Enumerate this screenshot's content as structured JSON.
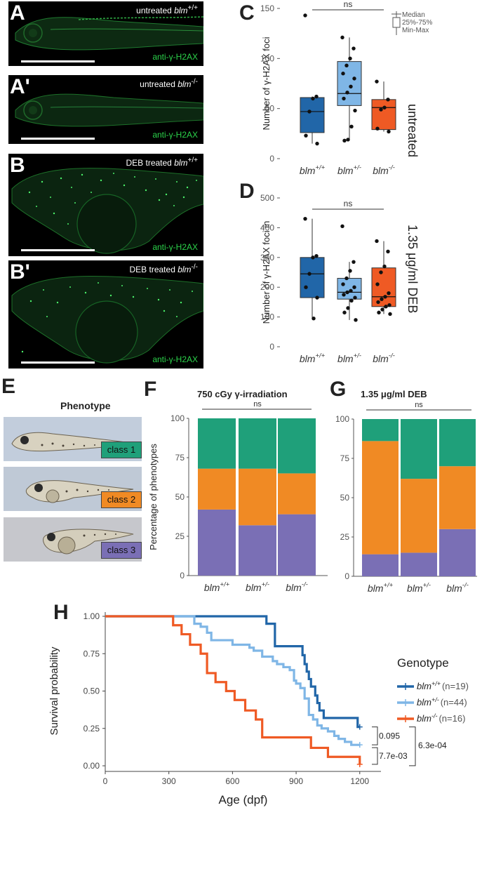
{
  "panels": {
    "a": {
      "letter": "A",
      "label": "untreated ",
      "genotype": "blm",
      "sup": "+/+",
      "antibody": "anti-γ-H2AX"
    },
    "a2": {
      "letter": "A'",
      "label": "untreated ",
      "genotype": "blm",
      "sup": "-/-",
      "antibody": "anti-γ-H2AX"
    },
    "b": {
      "letter": "B",
      "label": "DEB treated ",
      "genotype": "blm",
      "sup": "+/+",
      "antibody": "anti-γ-H2AX"
    },
    "b2": {
      "letter": "B'",
      "label": "DEB treated ",
      "genotype": "blm",
      "sup": "-/-",
      "antibody": "anti-γ-H2AX"
    },
    "c": {
      "letter": "C",
      "side_label": "untreated"
    },
    "d": {
      "letter": "D",
      "side_label": "1.35 μg/ml DEB"
    },
    "e": {
      "letter": "E",
      "title": "Phenotype",
      "classes": [
        "class 1",
        "class 2",
        "class 3"
      ]
    },
    "f": {
      "letter": "F"
    },
    "g": {
      "letter": "G"
    },
    "h": {
      "letter": "H"
    }
  },
  "legend_box": {
    "median": "Median",
    "iqr": "25%-75%",
    "range": "Min-Max"
  },
  "genotypes": {
    "base": "blm",
    "labels": [
      "+/+",
      "+/-",
      "-/-"
    ],
    "colors": [
      "#2166a8",
      "#7fb6e6",
      "#ef5a24"
    ]
  },
  "class_colors": {
    "class1": "#1fa07a",
    "class2": "#f08a24",
    "class3": "#7a6fb5"
  },
  "chart_data": [
    {
      "id": "C",
      "type": "box",
      "ylabel": "Number of γ-H2AX foci",
      "ylim": [
        0,
        150
      ],
      "yticks": [
        0,
        50,
        100,
        150
      ],
      "significance": "ns",
      "series": [
        {
          "name": "+/+",
          "q1": 26,
          "median": 47,
          "q3": 61,
          "min": 15,
          "max": 62,
          "outliers": [
            143
          ],
          "points": [
            143,
            62,
            60,
            47,
            23,
            15
          ]
        },
        {
          "name": "+/-",
          "q1": 53,
          "median": 65,
          "q3": 97,
          "min": 18,
          "max": 121,
          "points": [
            121,
            110,
            100,
            93,
            85,
            80,
            72,
            66,
            60,
            48,
            32,
            19,
            18
          ]
        },
        {
          "name": "-/-",
          "q1": 29,
          "median": 51,
          "q3": 59,
          "min": 27,
          "max": 77,
          "points": [
            77,
            59,
            51,
            49,
            30,
            27
          ]
        }
      ]
    },
    {
      "id": "D",
      "type": "box",
      "ylabel": "Number of γ-H2AX foci in",
      "ylim": [
        0,
        500
      ],
      "yticks": [
        0,
        100,
        200,
        300,
        400,
        500
      ],
      "significance": "ns",
      "series": [
        {
          "name": "+/+",
          "q1": 165,
          "median": 245,
          "q3": 300,
          "min": 95,
          "max": 430,
          "points": [
            430,
            305,
            300,
            245,
            200,
            165,
            95
          ]
        },
        {
          "name": "+/-",
          "q1": 160,
          "median": 183,
          "q3": 230,
          "min": 90,
          "max": 285,
          "outliers": [
            405
          ],
          "points": [
            405,
            285,
            255,
            230,
            210,
            200,
            188,
            183,
            175,
            165,
            155,
            130,
            115,
            90
          ]
        },
        {
          "name": "-/-",
          "q1": 135,
          "median": 168,
          "q3": 265,
          "min": 110,
          "max": 355,
          "points": [
            355,
            320,
            270,
            250,
            210,
            180,
            168,
            160,
            150,
            140,
            135,
            125,
            115,
            110
          ]
        }
      ]
    },
    {
      "id": "F",
      "type": "bar",
      "stacked": true,
      "title": "750 cGy γ-irradiation",
      "ylabel": "Percentage of phenotypes",
      "ylim": [
        0,
        100
      ],
      "yticks": [
        0,
        25,
        50,
        75,
        100
      ],
      "significance": "ns",
      "categories": [
        "+/+",
        "+/-",
        "-/-"
      ],
      "series": [
        {
          "name": "class 3",
          "values": [
            42,
            32,
            39
          ]
        },
        {
          "name": "class 2",
          "values": [
            26,
            36,
            26
          ]
        },
        {
          "name": "class 1",
          "values": [
            32,
            32,
            35
          ]
        }
      ]
    },
    {
      "id": "G",
      "type": "bar",
      "stacked": true,
      "title": "1.35 μg/ml DEB",
      "ylim": [
        0,
        100
      ],
      "yticks": [
        0,
        25,
        50,
        75,
        100
      ],
      "significance": "ns",
      "categories": [
        "+/+",
        "+/-",
        "-/-"
      ],
      "series": [
        {
          "name": "class 3",
          "values": [
            14,
            15,
            30
          ]
        },
        {
          "name": "class 2",
          "values": [
            72,
            47,
            40
          ]
        },
        {
          "name": "class 1",
          "values": [
            14,
            38,
            30
          ]
        }
      ]
    },
    {
      "id": "H",
      "type": "line",
      "subtype": "kaplan-meier",
      "xlabel": "Age (dpf)",
      "ylabel": "Survival probability",
      "xlim": [
        0,
        1300
      ],
      "ylim": [
        0,
        1
      ],
      "xticks": [
        0,
        300,
        600,
        900,
        1200
      ],
      "yticks": [
        "0.00",
        "0.25",
        "0.50",
        "0.75",
        "1.00"
      ],
      "legend_title": "Genotype",
      "legend": [
        {
          "name": "+/+",
          "n": "(n=19)"
        },
        {
          "name": "+/-",
          "n": "(n=44)"
        },
        {
          "name": "-/-",
          "n": "(n=16)"
        }
      ],
      "pvalues": {
        "wt_vs_het": "0.095",
        "het_vs_mut": "7.7e-03",
        "wt_vs_mut": "6.3e-04"
      },
      "series": [
        {
          "name": "+/+",
          "x": [
            0,
            740,
            760,
            800,
            930,
            940,
            950,
            960,
            970,
            990,
            1000,
            1010,
            1030,
            1050,
            1190,
            1200
          ],
          "y": [
            1.0,
            1.0,
            0.95,
            0.8,
            0.74,
            0.68,
            0.63,
            0.58,
            0.53,
            0.47,
            0.42,
            0.37,
            0.32,
            0.32,
            0.26,
            0.26
          ]
        },
        {
          "name": "+/-",
          "x": [
            0,
            400,
            420,
            450,
            480,
            500,
            600,
            680,
            700,
            740,
            790,
            810,
            840,
            870,
            890,
            900,
            920,
            940,
            960,
            980,
            1000,
            1020,
            1050,
            1080,
            1100,
            1130,
            1160,
            1200
          ],
          "y": [
            1.0,
            1.0,
            0.95,
            0.93,
            0.89,
            0.84,
            0.81,
            0.79,
            0.77,
            0.73,
            0.7,
            0.68,
            0.66,
            0.64,
            0.57,
            0.55,
            0.52,
            0.45,
            0.34,
            0.31,
            0.27,
            0.25,
            0.23,
            0.2,
            0.18,
            0.16,
            0.14,
            0.14
          ]
        },
        {
          "name": "-/-",
          "x": [
            0,
            290,
            320,
            360,
            400,
            450,
            480,
            520,
            570,
            610,
            660,
            710,
            740,
            970,
            1050,
            1200
          ],
          "y": [
            1.0,
            1.0,
            0.94,
            0.88,
            0.81,
            0.75,
            0.62,
            0.56,
            0.5,
            0.44,
            0.37,
            0.31,
            0.19,
            0.12,
            0.06,
            0.01
          ]
        }
      ]
    }
  ]
}
